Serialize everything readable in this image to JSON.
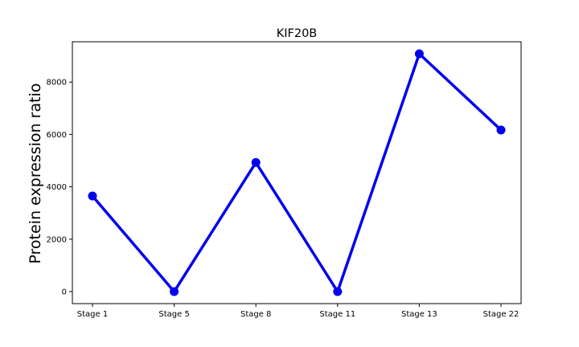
{
  "chart_data": {
    "type": "line",
    "title": "KIF20B",
    "xlabel": "",
    "ylabel": "Protein expression ratio",
    "categories": [
      "Stage 1",
      "Stage 5",
      "Stage 8",
      "Stage 11",
      "Stage 13",
      "Stage 22"
    ],
    "series": [
      {
        "values": [
          3650,
          0,
          4930,
          0,
          9080,
          6170
        ]
      }
    ],
    "ylim": [
      -460,
      9540
    ],
    "yticks": [
      0,
      2000,
      4000,
      6000,
      8000
    ],
    "grid": false,
    "line_color": "#0000ee",
    "marker": "circle"
  }
}
